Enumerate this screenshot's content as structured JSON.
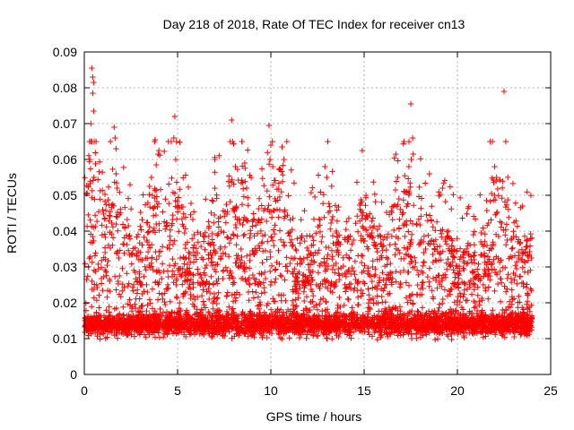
{
  "chart_data": {
    "type": "scatter",
    "title": "Day 218 of 2018, Rate Of TEC Index for receiver cn13",
    "xlabel": "GPS time / hours",
    "ylabel": "ROTI / TECUs",
    "xlim": [
      0,
      25
    ],
    "ylim": [
      0,
      0.09
    ],
    "xticks": [
      0,
      5,
      10,
      15,
      20,
      25
    ],
    "yticks": [
      0,
      0.01,
      0.02,
      0.03,
      0.04,
      0.05,
      0.06,
      0.07,
      0.08,
      0.09
    ],
    "xtick_labels": [
      "0",
      "5",
      "10",
      "15",
      "20",
      "25"
    ],
    "ytick_labels": [
      "0",
      "0.01",
      "0.02",
      "0.03",
      "0.04",
      "0.05",
      "0.06",
      "0.07",
      "0.08",
      "0.09"
    ],
    "grid": true,
    "marker": "plus",
    "color": "#ff0000",
    "data_range_x": [
      0,
      24
    ],
    "bulk_band": [
      0.005,
      0.02
    ],
    "series": [
      {
        "name": "ROTI",
        "notable_points": [
          [
            0.4,
            0.0855
          ],
          [
            0.45,
            0.083
          ],
          [
            0.5,
            0.0815
          ],
          [
            0.45,
            0.0785
          ],
          [
            0.5,
            0.0735
          ],
          [
            0.35,
            0.07
          ],
          [
            0.4,
            0.065
          ],
          [
            0.3,
            0.06
          ],
          [
            1.6,
            0.069
          ],
          [
            1.65,
            0.066
          ],
          [
            1.7,
            0.063
          ],
          [
            1.7,
            0.056
          ],
          [
            1.75,
            0.052
          ],
          [
            3.8,
            0.0655
          ],
          [
            4.0,
            0.0625
          ],
          [
            3.6,
            0.055
          ],
          [
            4.85,
            0.072
          ],
          [
            4.8,
            0.066
          ],
          [
            4.9,
            0.06
          ],
          [
            7.0,
            0.06
          ],
          [
            7.0,
            0.052
          ],
          [
            7.9,
            0.071
          ],
          [
            7.95,
            0.065
          ],
          [
            8.1,
            0.058
          ],
          [
            8.6,
            0.059
          ],
          [
            8.7,
            0.052
          ],
          [
            9.9,
            0.0695
          ],
          [
            10.0,
            0.064
          ],
          [
            9.95,
            0.06
          ],
          [
            10.1,
            0.058
          ],
          [
            10.6,
            0.0635
          ],
          [
            10.7,
            0.06
          ],
          [
            12.9,
            0.058
          ],
          [
            13.0,
            0.055
          ],
          [
            14.9,
            0.0625
          ],
          [
            15.1,
            0.05
          ],
          [
            16.7,
            0.0615
          ],
          [
            16.8,
            0.055
          ],
          [
            17.5,
            0.0755
          ],
          [
            17.6,
            0.066
          ],
          [
            17.4,
            0.058
          ],
          [
            18.5,
            0.056
          ],
          [
            19.2,
            0.052
          ],
          [
            22.0,
            0.058
          ],
          [
            22.1,
            0.055
          ],
          [
            22.0,
            0.05
          ],
          [
            22.1,
            0.045
          ],
          [
            22.5,
            0.079
          ]
        ]
      }
    ]
  }
}
